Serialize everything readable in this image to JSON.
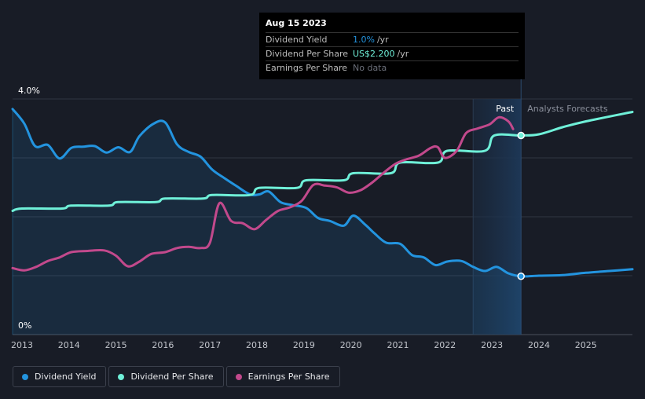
{
  "tooltip": {
    "date": "Aug 15 2023",
    "rows": [
      {
        "label": "Dividend Yield",
        "value": "1.0%",
        "unit": "/yr"
      },
      {
        "label": "Dividend Per Share",
        "value": "US$2.200",
        "unit": "/yr"
      },
      {
        "label": "Earnings Per Share",
        "value": "No data"
      }
    ]
  },
  "legend": [
    {
      "label": "Dividend Yield",
      "color": "#2394df"
    },
    {
      "label": "Dividend Per Share",
      "color": "#6ff0d8"
    },
    {
      "label": "Earnings Per Share",
      "color": "#c2498c"
    }
  ],
  "chart_data": {
    "type": "line",
    "x_range": [
      2012.8,
      2025.99
    ],
    "xticks": [
      "2013",
      "2014",
      "2015",
      "2016",
      "2017",
      "2018",
      "2019",
      "2020",
      "2021",
      "2022",
      "2023",
      "2024",
      "2025"
    ],
    "y_axis": {
      "min": 0,
      "max": 4.0,
      "tick_labels": [
        "4.0%",
        "0%"
      ],
      "unit": "%"
    },
    "past_label": "Past",
    "forecast_label": "Analysts Forecasts",
    "forecast_start": 2023.62,
    "highlight_band": [
      2022.6,
      2023.62
    ],
    "series": [
      {
        "name": "Dividend Yield",
        "color": "#2394df",
        "area": true,
        "points": [
          [
            2012.8,
            3.83
          ],
          [
            2013.05,
            3.58
          ],
          [
            2013.28,
            3.2
          ],
          [
            2013.55,
            3.22
          ],
          [
            2013.8,
            2.99
          ],
          [
            2014.05,
            3.17
          ],
          [
            2014.3,
            3.19
          ],
          [
            2014.55,
            3.2
          ],
          [
            2014.8,
            3.09
          ],
          [
            2015.05,
            3.18
          ],
          [
            2015.3,
            3.1
          ],
          [
            2015.5,
            3.37
          ],
          [
            2015.8,
            3.58
          ],
          [
            2016.05,
            3.6
          ],
          [
            2016.3,
            3.23
          ],
          [
            2016.55,
            3.1
          ],
          [
            2016.8,
            3.02
          ],
          [
            2017.05,
            2.8
          ],
          [
            2017.3,
            2.66
          ],
          [
            2017.55,
            2.53
          ],
          [
            2017.85,
            2.38
          ],
          [
            2018.05,
            2.38
          ],
          [
            2018.25,
            2.43
          ],
          [
            2018.5,
            2.25
          ],
          [
            2018.75,
            2.2
          ],
          [
            2019.05,
            2.15
          ],
          [
            2019.3,
            1.98
          ],
          [
            2019.55,
            1.93
          ],
          [
            2019.85,
            1.85
          ],
          [
            2020.05,
            2.02
          ],
          [
            2020.3,
            1.87
          ],
          [
            2020.5,
            1.72
          ],
          [
            2020.75,
            1.56
          ],
          [
            2021.05,
            1.54
          ],
          [
            2021.3,
            1.35
          ],
          [
            2021.55,
            1.31
          ],
          [
            2021.8,
            1.18
          ],
          [
            2022.05,
            1.24
          ],
          [
            2022.35,
            1.25
          ],
          [
            2022.6,
            1.15
          ],
          [
            2022.85,
            1.08
          ],
          [
            2023.1,
            1.15
          ],
          [
            2023.35,
            1.04
          ],
          [
            2023.62,
            0.99
          ],
          [
            2024.0,
            1.0
          ],
          [
            2024.5,
            1.01
          ],
          [
            2025.0,
            1.05
          ],
          [
            2025.5,
            1.08
          ],
          [
            2025.99,
            1.11
          ]
        ]
      },
      {
        "name": "Dividend Per Share",
        "color": "#6ff0d8",
        "area": false,
        "points": [
          [
            2012.8,
            2.1
          ],
          [
            2013.0,
            2.14
          ],
          [
            2013.85,
            2.14
          ],
          [
            2014.05,
            2.19
          ],
          [
            2014.85,
            2.19
          ],
          [
            2015.05,
            2.25
          ],
          [
            2015.85,
            2.25
          ],
          [
            2016.05,
            2.31
          ],
          [
            2016.85,
            2.31
          ],
          [
            2017.05,
            2.37
          ],
          [
            2017.85,
            2.37
          ],
          [
            2018.05,
            2.49
          ],
          [
            2018.85,
            2.49
          ],
          [
            2019.05,
            2.62
          ],
          [
            2019.85,
            2.62
          ],
          [
            2020.05,
            2.74
          ],
          [
            2020.85,
            2.74
          ],
          [
            2021.05,
            2.92
          ],
          [
            2021.85,
            2.92
          ],
          [
            2022.05,
            3.12
          ],
          [
            2022.85,
            3.12
          ],
          [
            2023.05,
            3.38
          ],
          [
            2023.62,
            3.38
          ],
          [
            2024.0,
            3.4
          ],
          [
            2024.5,
            3.52
          ],
          [
            2025.0,
            3.62
          ],
          [
            2025.99,
            3.78
          ]
        ]
      },
      {
        "name": "Earnings Per Share",
        "color": "#c2498c",
        "area": false,
        "points": [
          [
            2012.8,
            1.13
          ],
          [
            2013.05,
            1.09
          ],
          [
            2013.3,
            1.15
          ],
          [
            2013.55,
            1.25
          ],
          [
            2013.8,
            1.31
          ],
          [
            2014.05,
            1.4
          ],
          [
            2014.4,
            1.42
          ],
          [
            2014.75,
            1.43
          ],
          [
            2015.0,
            1.34
          ],
          [
            2015.25,
            1.16
          ],
          [
            2015.5,
            1.24
          ],
          [
            2015.75,
            1.37
          ],
          [
            2016.05,
            1.4
          ],
          [
            2016.3,
            1.47
          ],
          [
            2016.55,
            1.49
          ],
          [
            2016.8,
            1.47
          ],
          [
            2017.0,
            1.56
          ],
          [
            2017.2,
            2.23
          ],
          [
            2017.45,
            1.93
          ],
          [
            2017.7,
            1.89
          ],
          [
            2017.95,
            1.79
          ],
          [
            2018.2,
            1.95
          ],
          [
            2018.45,
            2.1
          ],
          [
            2018.7,
            2.16
          ],
          [
            2018.95,
            2.27
          ],
          [
            2019.2,
            2.54
          ],
          [
            2019.45,
            2.53
          ],
          [
            2019.7,
            2.5
          ],
          [
            2019.95,
            2.41
          ],
          [
            2020.2,
            2.45
          ],
          [
            2020.45,
            2.58
          ],
          [
            2020.7,
            2.75
          ],
          [
            2020.95,
            2.9
          ],
          [
            2021.2,
            2.98
          ],
          [
            2021.45,
            3.04
          ],
          [
            2021.7,
            3.17
          ],
          [
            2021.85,
            3.18
          ],
          [
            2022.0,
            3.0
          ],
          [
            2022.25,
            3.12
          ],
          [
            2022.45,
            3.42
          ],
          [
            2022.7,
            3.5
          ],
          [
            2022.95,
            3.57
          ],
          [
            2023.15,
            3.69
          ],
          [
            2023.35,
            3.62
          ],
          [
            2023.45,
            3.49
          ]
        ]
      }
    ]
  }
}
